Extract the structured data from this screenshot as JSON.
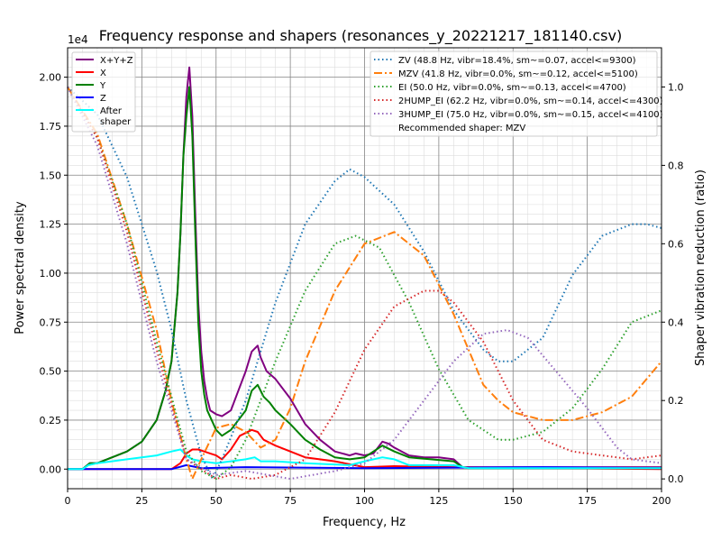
{
  "chart_data": {
    "type": "line",
    "title": "Frequency response and shapers (resonances_y_20221217_181140.csv)",
    "xlabel": "Frequency, Hz",
    "ylabel": "Power spectral density",
    "y2label": "Shaper vibration reduction (ratio)",
    "y_offset_label": "1e4",
    "xlim": [
      0,
      200
    ],
    "ylim": [
      -0.1,
      2.15
    ],
    "y2lim": [
      -0.025,
      1.1
    ],
    "xticks": [
      0,
      25,
      50,
      75,
      100,
      125,
      150,
      175,
      200
    ],
    "xtick_labels": [
      "0",
      "25",
      "50",
      "75",
      "100",
      "125",
      "150",
      "175",
      "200"
    ],
    "yticks": [
      0,
      0.25,
      0.5,
      0.75,
      1.0,
      1.25,
      1.5,
      1.75,
      2.0
    ],
    "ytick_labels": [
      "0.00",
      "0.25",
      "0.50",
      "0.75",
      "1.00",
      "1.25",
      "1.50",
      "1.75",
      "2.00"
    ],
    "y2ticks": [
      0,
      0.2,
      0.4,
      0.6,
      0.8,
      1.0
    ],
    "y2tick_labels": [
      "0.0",
      "0.2",
      "0.4",
      "0.6",
      "0.8",
      "1.0"
    ],
    "grid": true,
    "legend_left_placement": "top-left",
    "legend_right_placement": "top-right",
    "series": [
      {
        "name": "X+Y+Z",
        "axis": "left",
        "color": "#800080",
        "style": "solid",
        "x": [
          0,
          5,
          7.5,
          10,
          15,
          20,
          25,
          30,
          33,
          35,
          37,
          38,
          39,
          40,
          41,
          42,
          43,
          44,
          45,
          46,
          47,
          48,
          50,
          52,
          55,
          57,
          60,
          62,
          64,
          65,
          67,
          70,
          75,
          80,
          85,
          90,
          95,
          97,
          100,
          103,
          106,
          108,
          110,
          115,
          120,
          125,
          130,
          133,
          135,
          200
        ],
        "y": [
          0,
          0,
          0.03,
          0.03,
          0.06,
          0.09,
          0.14,
          0.25,
          0.4,
          0.55,
          0.9,
          1.2,
          1.6,
          1.9,
          2.05,
          1.8,
          1.3,
          0.85,
          0.6,
          0.45,
          0.36,
          0.3,
          0.28,
          0.27,
          0.3,
          0.38,
          0.5,
          0.6,
          0.63,
          0.57,
          0.5,
          0.46,
          0.36,
          0.23,
          0.15,
          0.09,
          0.07,
          0.08,
          0.07,
          0.08,
          0.14,
          0.13,
          0.11,
          0.07,
          0.06,
          0.06,
          0.05,
          0.01,
          0.01,
          0.01
        ]
      },
      {
        "name": "X",
        "axis": "left",
        "color": "#ff0000",
        "style": "solid",
        "x": [
          0,
          35,
          38,
          40,
          42,
          44,
          46,
          48,
          50,
          52,
          55,
          58,
          62,
          64,
          66,
          70,
          75,
          80,
          90,
          100,
          110,
          130,
          200
        ],
        "y": [
          0,
          0,
          0.03,
          0.08,
          0.1,
          0.1,
          0.09,
          0.08,
          0.07,
          0.05,
          0.1,
          0.17,
          0.2,
          0.19,
          0.15,
          0.12,
          0.09,
          0.06,
          0.04,
          0.01,
          0.015,
          0.01,
          0
        ]
      },
      {
        "name": "Y",
        "axis": "left",
        "color": "#008000",
        "style": "solid",
        "x": [
          0,
          5,
          7.5,
          10,
          15,
          20,
          25,
          30,
          33,
          35,
          37,
          38,
          39,
          40,
          41,
          42,
          43,
          44,
          45,
          46,
          47,
          50,
          52,
          55,
          60,
          62,
          64,
          66,
          68,
          70,
          75,
          80,
          85,
          90,
          95,
          100,
          106,
          110,
          115,
          130,
          133,
          135,
          200
        ],
        "y": [
          0,
          0,
          0.03,
          0.03,
          0.06,
          0.09,
          0.14,
          0.25,
          0.4,
          0.55,
          0.9,
          1.2,
          1.6,
          1.8,
          1.95,
          1.7,
          1.2,
          0.75,
          0.5,
          0.38,
          0.3,
          0.2,
          0.17,
          0.2,
          0.3,
          0.4,
          0.43,
          0.37,
          0.34,
          0.3,
          0.23,
          0.15,
          0.1,
          0.06,
          0.05,
          0.06,
          0.12,
          0.09,
          0.06,
          0.04,
          0.01,
          0.005,
          0.005
        ]
      },
      {
        "name": "Z",
        "axis": "left",
        "color": "#0000ff",
        "style": "solid",
        "x": [
          0,
          35,
          40,
          45,
          60,
          100,
          160,
          200
        ],
        "y": [
          0,
          0,
          0.02,
          0.005,
          0.01,
          0.005,
          0.01,
          0.005
        ]
      },
      {
        "name": "After\nshaper",
        "axis": "left",
        "color": "#00ffff",
        "style": "solid",
        "x": [
          0,
          5,
          7,
          10,
          20,
          30,
          35,
          38,
          40,
          42,
          45,
          50,
          55,
          60,
          63,
          65,
          70,
          80,
          95,
          100,
          106,
          110,
          115,
          130,
          135,
          200
        ],
        "y": [
          0,
          0,
          0.02,
          0.03,
          0.05,
          0.07,
          0.09,
          0.1,
          0.07,
          0.05,
          0.04,
          0.03,
          0.04,
          0.05,
          0.06,
          0.04,
          0.04,
          0.03,
          0.02,
          0.04,
          0.06,
          0.05,
          0.02,
          0.02,
          0.005,
          0.005
        ]
      },
      {
        "name": "ZV (48.8 Hz, vibr=18.4%, sm~=0.07, accel<=9300)",
        "axis": "right",
        "color": "#1f77b4",
        "style": "dotted",
        "x": [
          0,
          10,
          20,
          30,
          35,
          40,
          45,
          48.8,
          52,
          60,
          70,
          80,
          90,
          95,
          100,
          110,
          120,
          130,
          140,
          145,
          150,
          160,
          170,
          180,
          190,
          195,
          200
        ],
        "y": [
          1.0,
          0.93,
          0.77,
          0.53,
          0.38,
          0.2,
          0.06,
          0.0,
          0.05,
          0.2,
          0.45,
          0.65,
          0.76,
          0.79,
          0.77,
          0.7,
          0.58,
          0.43,
          0.33,
          0.3,
          0.3,
          0.36,
          0.52,
          0.62,
          0.65,
          0.65,
          0.64
        ]
      },
      {
        "name": "MZV (41.8 Hz, vibr=0.0%, sm~=0.12, accel<=5100)",
        "axis": "right",
        "color": "#ff7f0e",
        "style": "dashdot",
        "x": [
          0,
          10,
          20,
          30,
          35,
          40,
          42,
          45,
          50,
          55,
          60,
          65,
          70,
          75,
          80,
          90,
          100,
          110,
          120,
          130,
          140,
          145,
          150,
          160,
          170,
          180,
          190,
          200
        ],
        "y": [
          1.0,
          0.88,
          0.65,
          0.38,
          0.2,
          0.05,
          0.0,
          0.05,
          0.13,
          0.14,
          0.12,
          0.08,
          0.1,
          0.18,
          0.3,
          0.48,
          0.6,
          0.63,
          0.57,
          0.42,
          0.24,
          0.2,
          0.17,
          0.15,
          0.15,
          0.17,
          0.21,
          0.3
        ]
      },
      {
        "name": "EI (50.0 Hz, vibr=0.0%, sm~=0.13, accel<=4700)",
        "axis": "right",
        "color": "#2ca02c",
        "style": "dotted",
        "x": [
          0,
          10,
          20,
          30,
          40,
          45,
          50,
          55,
          60,
          70,
          80,
          90,
          97,
          105,
          115,
          125,
          135,
          145,
          150,
          160,
          170,
          180,
          190,
          200
        ],
        "y": [
          1.0,
          0.87,
          0.65,
          0.35,
          0.07,
          0.02,
          0.0,
          0.03,
          0.1,
          0.3,
          0.48,
          0.6,
          0.62,
          0.59,
          0.45,
          0.28,
          0.15,
          0.1,
          0.1,
          0.12,
          0.18,
          0.28,
          0.4,
          0.43
        ]
      },
      {
        "name": "2HUMP_EI (62.2 Hz, vibr=0.0%, sm~=0.14, accel<=4300)",
        "axis": "right",
        "color": "#d62728",
        "style": "dotted",
        "x": [
          0,
          10,
          20,
          30,
          40,
          50,
          55,
          62,
          70,
          80,
          90,
          100,
          110,
          120,
          125,
          130,
          140,
          150,
          160,
          170,
          180,
          190,
          200
        ],
        "y": [
          1.0,
          0.87,
          0.63,
          0.33,
          0.05,
          0.0,
          0.01,
          0.0,
          0.01,
          0.05,
          0.17,
          0.33,
          0.44,
          0.48,
          0.48,
          0.45,
          0.35,
          0.2,
          0.1,
          0.07,
          0.06,
          0.05,
          0.06
        ]
      },
      {
        "name": "3HUMP_EI (75.0 Hz, vibr=0.0%, sm~=0.15, accel<=4100)",
        "axis": "right",
        "color": "#9467bd",
        "style": "dotted",
        "x": [
          0,
          10,
          20,
          30,
          40,
          50,
          60,
          75,
          90,
          100,
          110,
          120,
          130,
          140,
          148,
          155,
          165,
          175,
          185,
          190,
          200
        ],
        "y": [
          1.0,
          0.85,
          0.6,
          0.3,
          0.05,
          0.01,
          0.02,
          0.0,
          0.02,
          0.04,
          0.1,
          0.2,
          0.3,
          0.37,
          0.38,
          0.36,
          0.27,
          0.18,
          0.08,
          0.05,
          0.04
        ]
      }
    ],
    "annotation": "Recommended shaper: MZV"
  }
}
